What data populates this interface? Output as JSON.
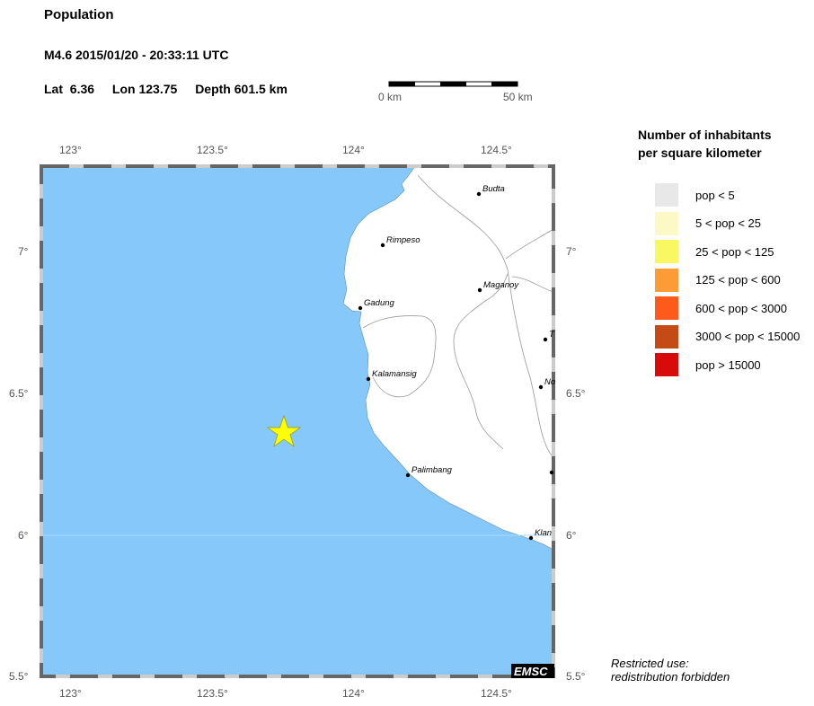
{
  "header": {
    "title": "Population",
    "event": "M4.6  2015/01/20 - 20:33:11 UTC",
    "lat_label": "Lat",
    "lat": "6.36",
    "lon_label": "Lon",
    "lon": "123.75",
    "depth_label": "Depth",
    "depth": "601.5 km"
  },
  "scale_bar": {
    "start": "0 km",
    "end": "50 km"
  },
  "axes": {
    "lon_ticks": [
      "123°",
      "123.5°",
      "124°",
      "124.5°"
    ],
    "lat_ticks": [
      "7°",
      "6.5°",
      "6°",
      "5.5°"
    ]
  },
  "map": {
    "sea_color": "#87c8fa",
    "land_color": "#ffffff",
    "epicenter": {
      "lat": 6.36,
      "lon": 123.75,
      "marker": "star-icon",
      "color": "#ffff00"
    },
    "cities": [
      {
        "name": "Budta"
      },
      {
        "name": "Rimpeso"
      },
      {
        "name": "Maganoy"
      },
      {
        "name": "Gadung"
      },
      {
        "name": "Kalamansig"
      },
      {
        "name": "T"
      },
      {
        "name": "No"
      },
      {
        "name": "Palimbang"
      },
      {
        "name": ""
      },
      {
        "name": "Klan"
      }
    ],
    "logo": "EMSC"
  },
  "legend": {
    "title_line1": "Number of inhabitants",
    "title_line2": "per square kilometer",
    "items": [
      {
        "label": "pop < 5",
        "color": "#e8e8e8"
      },
      {
        "label": "5 < pop < 25",
        "color": "#fcf9c6"
      },
      {
        "label": "25 < pop < 125",
        "color": "#f9f863"
      },
      {
        "label": "125 < pop < 600",
        "color": "#fd9b36"
      },
      {
        "label": "600 < pop < 3000",
        "color": "#fd5a1c"
      },
      {
        "label": "3000 < pop < 15000",
        "color": "#c44a16"
      },
      {
        "label": "pop > 15000",
        "color": "#d80a0a"
      }
    ]
  },
  "notice": {
    "line1": "Restricted use:",
    "line2": "redistribution forbidden"
  }
}
